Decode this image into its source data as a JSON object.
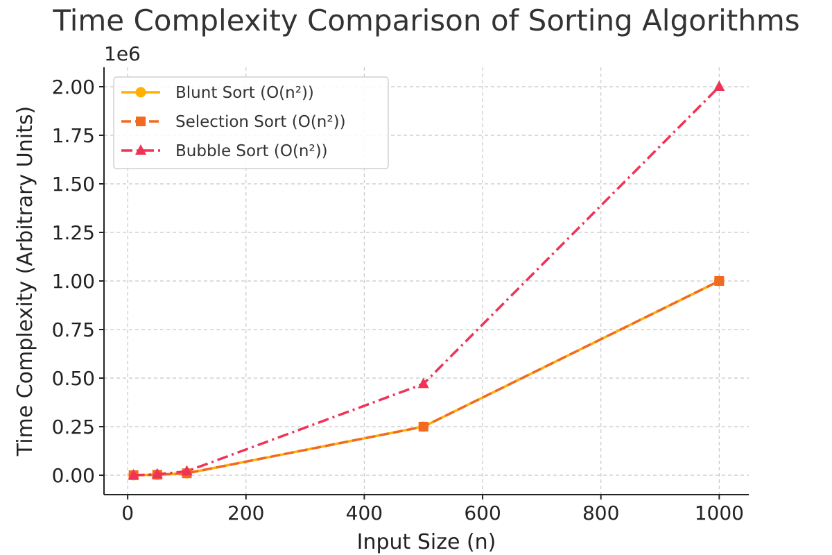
{
  "chart_data": {
    "type": "line",
    "title": "Time Complexity Comparison of Sorting Algorithms",
    "xlabel": "Input Size (n)",
    "ylabel": "Time Complexity (Arbitrary Units)",
    "y_offset_label": "1e6",
    "xlim": [
      -40,
      1050
    ],
    "ylim": [
      -0.1,
      2.1
    ],
    "x_ticks": [
      0,
      200,
      400,
      600,
      800,
      1000
    ],
    "x_tick_labels": [
      "0",
      "200",
      "400",
      "600",
      "800",
      "1000"
    ],
    "y_ticks": [
      0,
      0.25,
      0.5,
      0.75,
      1.0,
      1.25,
      1.5,
      1.75,
      2.0
    ],
    "y_tick_labels": [
      "0.00",
      "0.25",
      "0.50",
      "0.75",
      "1.00",
      "1.25",
      "1.50",
      "1.75",
      "2.00"
    ],
    "grid": true,
    "legend_position": "top-left",
    "x": [
      10,
      50,
      100,
      500,
      1000
    ],
    "series": [
      {
        "name": "Blunt Sort (O(n²))",
        "values": [
          0.0001,
          0.0025,
          0.01,
          0.25,
          1.0
        ],
        "color": "#FFB000",
        "marker": "circle",
        "line_style": "solid"
      },
      {
        "name": "Selection Sort (O(n²))",
        "values": [
          0.0001,
          0.0025,
          0.01,
          0.25,
          1.0
        ],
        "color": "#F26A21",
        "marker": "square",
        "line_style": "dashed"
      },
      {
        "name": "Bubble Sort (O(n²))",
        "values": [
          0.0002,
          0.005,
          0.02,
          0.47,
          2.0
        ],
        "color": "#EE3355",
        "marker": "triangle",
        "line_style": "dashdot"
      }
    ]
  }
}
